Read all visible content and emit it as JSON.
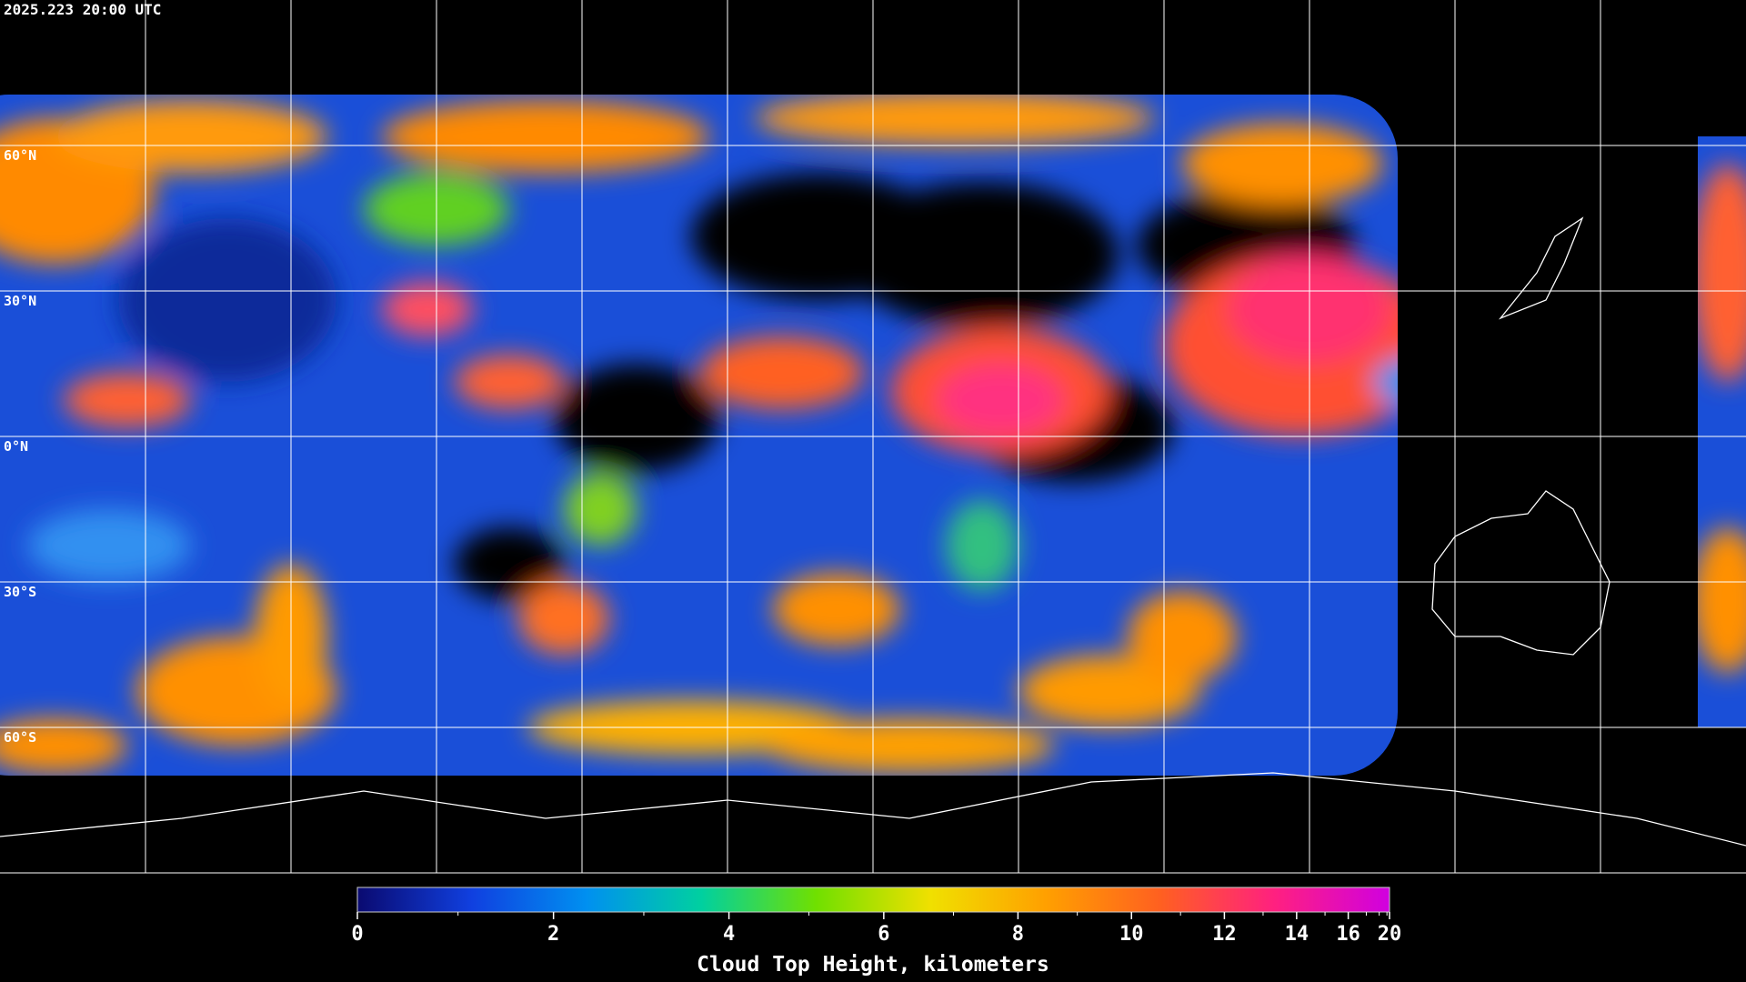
{
  "header": {
    "timestamp": "2025.223 20:00 UTC"
  },
  "map": {
    "lat_labels": [
      {
        "value": 60,
        "label": "60°N"
      },
      {
        "value": 30,
        "label": "30°N"
      },
      {
        "value": 0,
        "label": "0°N"
      },
      {
        "value": -30,
        "label": "30°S"
      },
      {
        "value": -60,
        "label": "60°S"
      }
    ]
  },
  "colorbar": {
    "title": "Cloud Top Height, kilometers",
    "range": [
      0,
      20
    ],
    "ticks": [
      0,
      2,
      4,
      6,
      8,
      10,
      12,
      14,
      16,
      20
    ],
    "minor_ticks": [
      1,
      3,
      5,
      7,
      9,
      11,
      13,
      15,
      17,
      18,
      19
    ],
    "colors": [
      "#0a0a70",
      "#1040e0",
      "#0090f0",
      "#00d0a0",
      "#70e000",
      "#f0e000",
      "#ffa000",
      "#ff6020",
      "#ff2080",
      "#d000e0"
    ]
  }
}
